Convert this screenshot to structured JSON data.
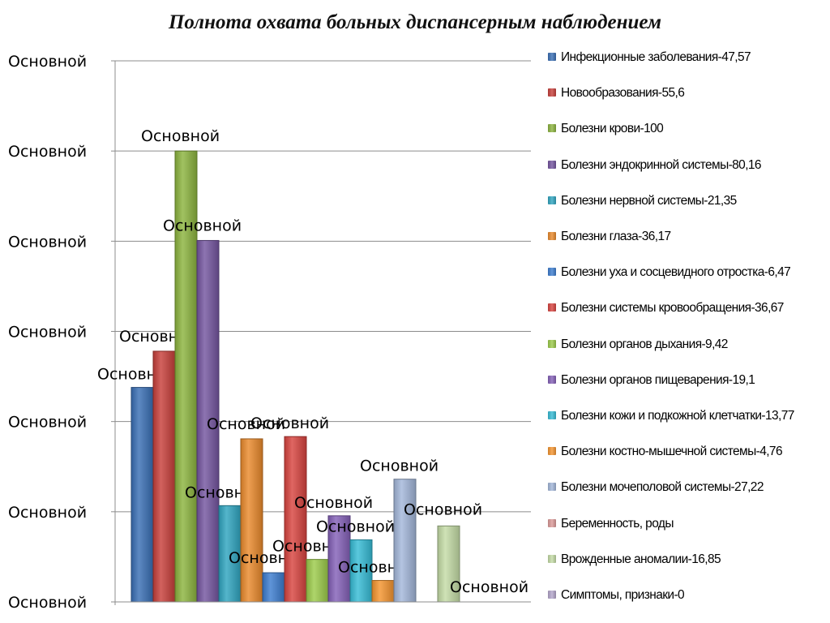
{
  "chart_data": {
    "type": "bar",
    "title": "Полнота охвата больных диспансерным наблюдением",
    "ylim": [
      0,
      120
    ],
    "y_ticks": [
      0,
      20,
      40,
      60,
      80,
      100,
      120
    ],
    "y_tick_labels": [
      "Основной",
      "Основной",
      "Основной",
      "Основной",
      "Основной",
      "Основной",
      "Основной"
    ],
    "grid": true,
    "legend_position": "right",
    "series": [
      {
        "name": "Инфекционные заболевания-47,57",
        "value": 47.57,
        "data_label": "Основной",
        "color": "#3a6fb5"
      },
      {
        "name": "Новообразования-55,6",
        "value": 55.6,
        "data_label": "Основной",
        "color": "#c8403b"
      },
      {
        "name": "Болезни крови-100",
        "value": 100,
        "data_label": "Основной",
        "color": "#8cb43e"
      },
      {
        "name": "Болезни эндокринной системы-80,16",
        "value": 80.16,
        "data_label": "Основной",
        "color": "#7455a0"
      },
      {
        "name": "Болезни нервной системы-21,35",
        "value": 21.35,
        "data_label": "Основной",
        "color": "#2fa5c0"
      },
      {
        "name": "Болезни глаза-36,17",
        "value": 36.17,
        "data_label": "Основной",
        "color": "#ea8a2c"
      },
      {
        "name": "Болезни уха и сосцевидного отростка-6,47",
        "value": 6.47,
        "data_label": "Основной",
        "color": "#3c7dd0"
      },
      {
        "name": "Болезни системы кровообращения-36,67",
        "value": 36.67,
        "data_label": "Основной",
        "color": "#d84440"
      },
      {
        "name": "Болезни органов дыхания-9,42",
        "value": 9.42,
        "data_label": "Основной",
        "color": "#9ccc4a"
      },
      {
        "name": "Болезни органов пищеварения-19,1",
        "value": 19.1,
        "data_label": "Основной",
        "color": "#8460b8"
      },
      {
        "name": "Болезни кожи и подкожной клетчатки-13,77",
        "value": 13.77,
        "data_label": "Основной",
        "color": "#36bcd6"
      },
      {
        "name": "Болезни костно-мышечной системы-4,76",
        "value": 4.76,
        "data_label": "Основной",
        "color": "#f5952f"
      },
      {
        "name": "Болезни мочеполовой системы-27,22",
        "value": 27.22,
        "data_label": "Основной",
        "color": "#a3b7da"
      },
      {
        "name": "Беременность, роды",
        "value": null,
        "data_label": "",
        "color": "#dc9a98"
      },
      {
        "name": "Врожденные аномалии-16,85",
        "value": 16.85,
        "data_label": "Основной",
        "color": "#c4dca6"
      },
      {
        "name": "Симптомы, признаки-0",
        "value": 0,
        "data_label": "Основной",
        "color": "#b4a6cc"
      }
    ]
  }
}
